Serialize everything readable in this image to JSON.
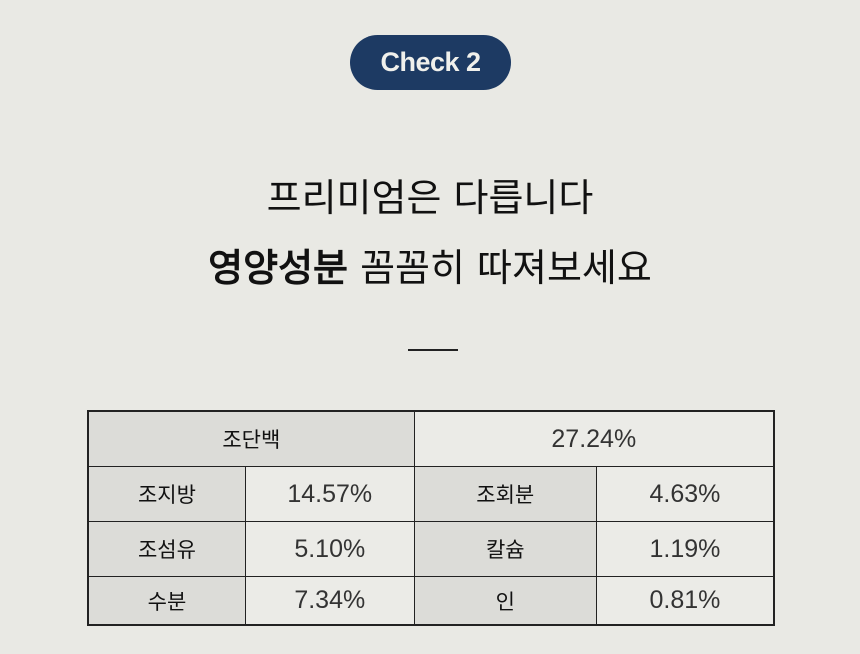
{
  "badge": {
    "label": "Check 2",
    "color": "#1d3a63"
  },
  "headline": {
    "line1": "프리미엄은 다릅니다",
    "line2_bold": "영양성분",
    "line2_rest": " 꼼꼼히 따져보세요"
  },
  "nutrition_table": {
    "top": {
      "label": "조단백",
      "value": "27.24%"
    },
    "rows": [
      [
        {
          "label": "조지방",
          "value": "14.57%"
        },
        {
          "label": "조회분",
          "value": "4.63%"
        }
      ],
      [
        {
          "label": "조섬유",
          "value": "5.10%"
        },
        {
          "label": "칼슘",
          "value": "1.19%"
        }
      ],
      [
        {
          "label": "수분",
          "value": "7.34%"
        },
        {
          "label": "인",
          "value": "0.81%"
        }
      ]
    ]
  }
}
